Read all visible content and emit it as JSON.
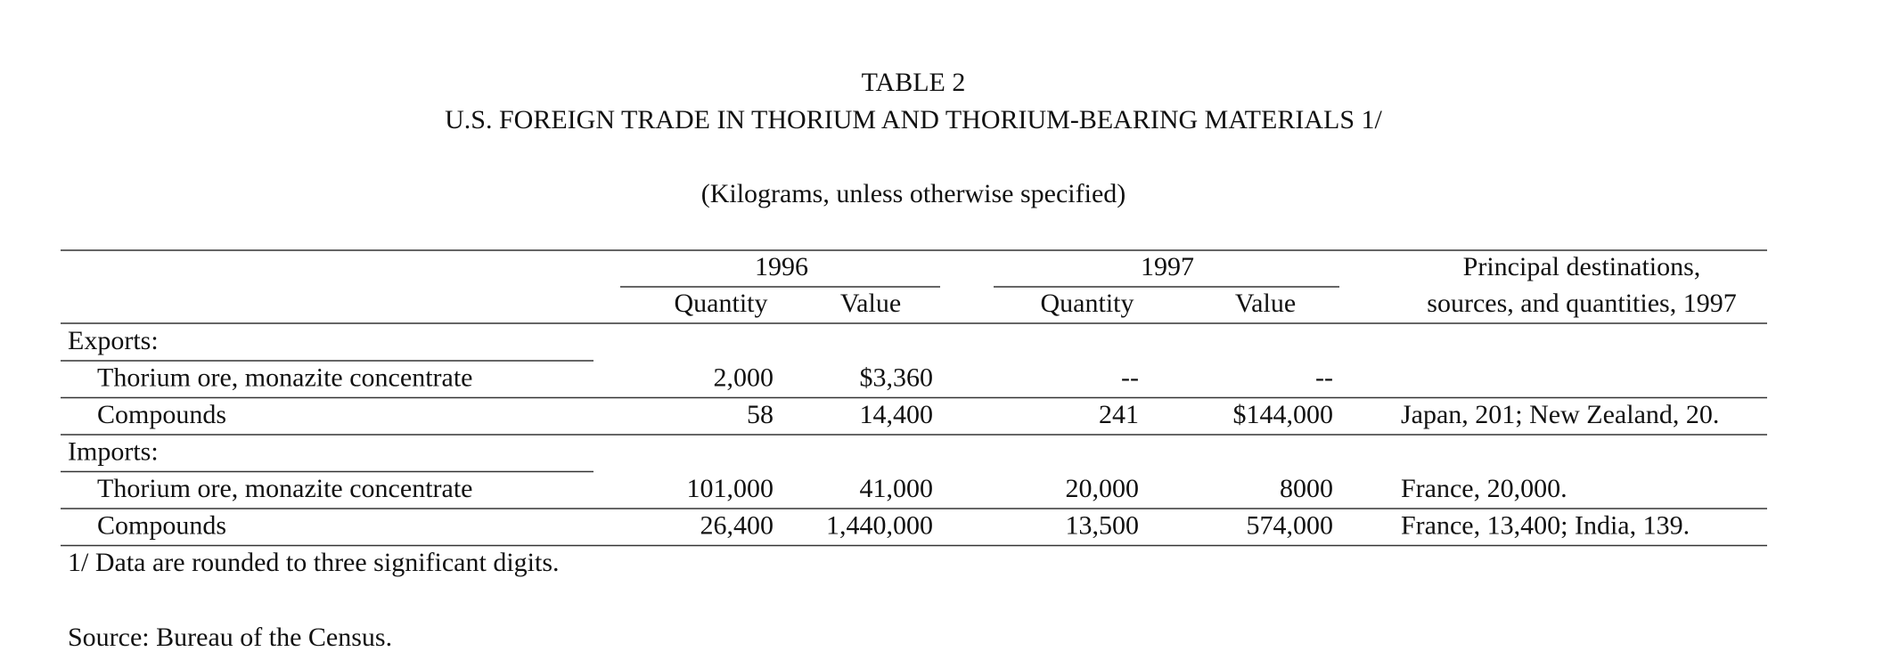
{
  "header": {
    "table_number": "TABLE 2",
    "title": "U.S. FOREIGN TRADE IN THORIUM AND THORIUM-BEARING MATERIALS 1/",
    "subtitle": "(Kilograms, unless otherwise specified)"
  },
  "table": {
    "years": [
      "1996",
      "1997"
    ],
    "subheaders": [
      "Quantity",
      "Value",
      "Quantity",
      "Value"
    ],
    "destinations_header": [
      "Principal destinations,",
      "sources, and quantities, 1997"
    ],
    "sections": [
      {
        "label": "Exports:",
        "rows": [
          {
            "label": "Thorium ore, monazite concentrate",
            "values": [
              "2,000",
              "$3,360",
              "--",
              "--"
            ]
          },
          {
            "label": "Compounds",
            "values": [
              "58",
              "14,400",
              "241",
              "$144,000"
            ],
            "destinations": "Japan, 201; New Zealand, 20."
          }
        ]
      },
      {
        "label": "Imports:",
        "rows": [
          {
            "label": "Thorium ore, monazite concentrate",
            "values": [
              "101,000",
              "41,000",
              "20,000",
              "8000"
            ],
            "destinations": "France, 20,000."
          },
          {
            "label": "Compounds",
            "values": [
              "26,400",
              "1,440,000",
              "13,500",
              "574,000"
            ],
            "destinations": "France, 13,400; India, 139."
          }
        ]
      }
    ]
  },
  "footnotes": [
    "1/ Data are rounded to three significant digits.",
    "Source:  Bureau of  the Census."
  ]
}
